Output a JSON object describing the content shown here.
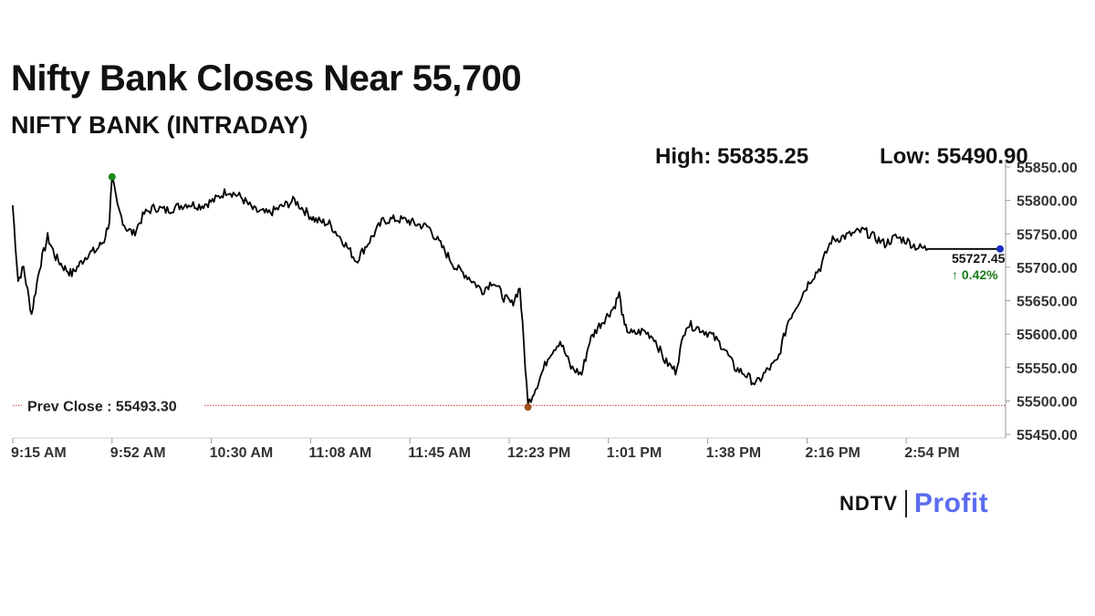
{
  "header": {
    "title": "Nifty Bank Closes Near 55,700",
    "subtitle": "NIFTY BANK (INTRADAY)"
  },
  "stats": {
    "high_label": "High: 55835.25",
    "low_label": "Low: 55490.90"
  },
  "chart_data": {
    "type": "line",
    "title": "NIFTY BANK (INTRADAY)",
    "xlabel": "",
    "ylabel": "",
    "x_ticks": [
      "9:15 AM",
      "9:52 AM",
      "10:30 AM",
      "11:08 AM",
      "11:45 AM",
      "12:23 PM",
      "1:01 PM",
      "1:38 PM",
      "2:16 PM",
      "2:54 PM"
    ],
    "y_ticks": [
      "55850.00",
      "55800.00",
      "55750.00",
      "55700.00",
      "55650.00",
      "55600.00",
      "55550.00",
      "55500.00",
      "55450.00"
    ],
    "ylim": [
      55450,
      55850
    ],
    "grid": false,
    "series": [
      {
        "color": "#000000",
        "x": [
          "9:15 AM",
          "9:17 AM",
          "9:19 AM",
          "9:22 AM",
          "9:25 AM",
          "9:28 AM",
          "9:31 AM",
          "9:34 AM",
          "9:37 AM",
          "9:40 AM",
          "9:43 AM",
          "9:46 AM",
          "9:49 AM",
          "9:51 AM",
          "9:52 AM",
          "9:54 AM",
          "9:57 AM",
          "10:00 AM",
          "10:04 AM",
          "10:08 AM",
          "10:12 AM",
          "10:16 AM",
          "10:20 AM",
          "10:25 AM",
          "10:30 AM",
          "10:35 AM",
          "10:40 AM",
          "10:45 AM",
          "10:50 AM",
          "10:55 AM",
          "11:00 AM",
          "11:05 AM",
          "11:08 AM",
          "11:13 AM",
          "11:18 AM",
          "11:23 AM",
          "11:28 AM",
          "11:33 AM",
          "11:38 AM",
          "11:42 AM",
          "11:45 AM",
          "11:50 AM",
          "11:55 AM",
          "12:00 PM",
          "12:05 PM",
          "12:10 PM",
          "12:14 PM",
          "12:18 PM",
          "12:21 PM",
          "12:24 PM",
          "12:27 PM",
          "12:31 PM",
          "12:35 PM",
          "12:39 PM",
          "12:43 PM",
          "12:47 PM",
          "12:50 PM",
          "12:53 PM",
          "12:55 PM",
          "12:57 PM",
          "12:59 PM",
          "1:01 PM",
          "1:03 PM",
          "1:06 PM",
          "1:10 PM",
          "1:14 PM",
          "1:18 PM",
          "1:22 PM",
          "1:26 PM",
          "1:30 PM",
          "1:35 PM",
          "1:40 PM",
          "1:44 PM",
          "1:48 PM",
          "1:52 PM",
          "1:56 PM",
          "2:00 PM",
          "2:04 PM",
          "2:08 PM",
          "2:12 PM",
          "2:16 PM",
          "2:20 PM",
          "2:24 PM",
          "2:28 PM",
          "2:32 PM",
          "2:36 PM",
          "2:40 PM",
          "2:44 PM",
          "2:48 PM",
          "2:52 PM",
          "2:56 PM",
          "3:00 PM",
          "3:05 PM",
          "3:10 PM",
          "3:15 PM",
          "3:20 PM",
          "3:25 PM",
          "3:29 PM"
        ],
        "values": [
          55790,
          55680,
          55700,
          55630,
          55700,
          55745,
          55715,
          55700,
          55690,
          55705,
          55720,
          55725,
          55740,
          55770,
          55835.25,
          55790,
          55760,
          55750,
          55780,
          55790,
          55785,
          55790,
          55795,
          55792,
          55800,
          55815,
          55805,
          55785,
          55780,
          55790,
          55800,
          55780,
          55770,
          55765,
          55740,
          55710,
          55740,
          55770,
          55772,
          55770,
          55765,
          55760,
          55730,
          55700,
          55685,
          55665,
          55680,
          55655,
          55645,
          55670,
          55495,
          55530,
          55570,
          55590,
          55550,
          55540,
          55590,
          55610,
          55620,
          55630,
          55640,
          55660,
          55610,
          55600,
          55605,
          55595,
          55560,
          55545,
          55615,
          55610,
          55600,
          55580,
          55550,
          55540,
          55525,
          55545,
          55560,
          55620,
          55650,
          55680,
          55700,
          55740,
          55745,
          55750,
          55755,
          55745,
          55735,
          55745,
          55740,
          55730,
          55727.45,
          55727.45,
          55727.45,
          55727.45,
          55727.45,
          55727.45,
          55727.45,
          55727.45
        ]
      }
    ],
    "annotations": {
      "prev_close_label": "Prev Close : 55493.30",
      "prev_close_value": 55493.3,
      "last_value_label": "55727.45",
      "last_value": 55727.45,
      "change_label": "↑ 0.42%",
      "high_value": 55835.25,
      "low_value": 55490.9
    },
    "colors": {
      "line": "#000000",
      "prev_close_line": "#c0392b",
      "high_marker": "#1a8a1a",
      "low_marker": "#a0521a",
      "last_marker": "#1c2fbf",
      "change_up": "#1a7a1a"
    }
  },
  "branding": {
    "ndtv": "NDTV",
    "profit": "Profit",
    "profit_color": "#5b6cf0"
  }
}
